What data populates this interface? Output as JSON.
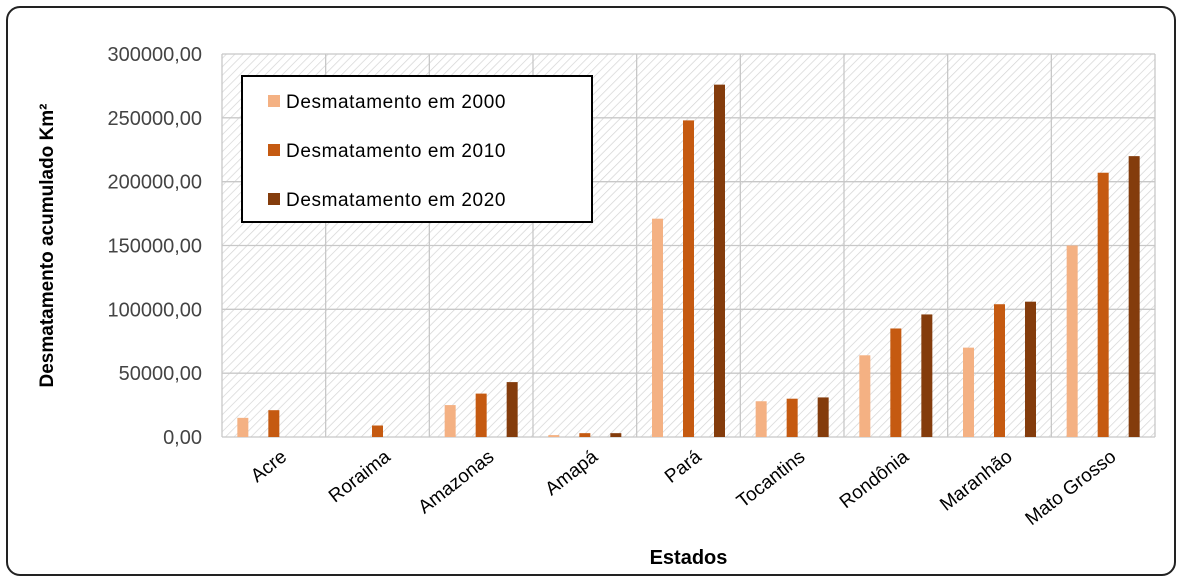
{
  "chart_data": {
    "type": "bar",
    "title": "",
    "xlabel": "Estados",
    "ylabel": "Desmatamento acumulado Km²",
    "ylim": [
      0,
      300000
    ],
    "y_ticks": [
      {
        "value": 0,
        "label": "0,00"
      },
      {
        "value": 50000,
        "label": "50000,00"
      },
      {
        "value": 100000,
        "label": "100000,00"
      },
      {
        "value": 150000,
        "label": "150000,00"
      },
      {
        "value": 200000,
        "label": "200000,00"
      },
      {
        "value": 250000,
        "label": "250000,00"
      },
      {
        "value": 300000,
        "label": "300000,00"
      }
    ],
    "categories": [
      "Acre",
      "Roraima",
      "Amazonas",
      "Amapá",
      "Pará",
      "Tocantins",
      "Rondônia",
      "Maranhão",
      "Mato Grosso"
    ],
    "series": [
      {
        "name": "Desmatamento em 2000",
        "color": "#f4b183",
        "values": [
          15000,
          0,
          25000,
          1500,
          171000,
          28000,
          64000,
          70000,
          150000
        ]
      },
      {
        "name": "Desmatamento em 2010",
        "color": "#c55a11",
        "values": [
          21000,
          9000,
          34000,
          3000,
          248000,
          30000,
          85000,
          104000,
          207000
        ]
      },
      {
        "name": "Desmatamento em 2020",
        "color": "#843c0c",
        "values": [
          0,
          0,
          43000,
          3000,
          276000,
          31000,
          96000,
          106000,
          220000
        ]
      }
    ],
    "grid": true,
    "legend_position": "top-left"
  }
}
